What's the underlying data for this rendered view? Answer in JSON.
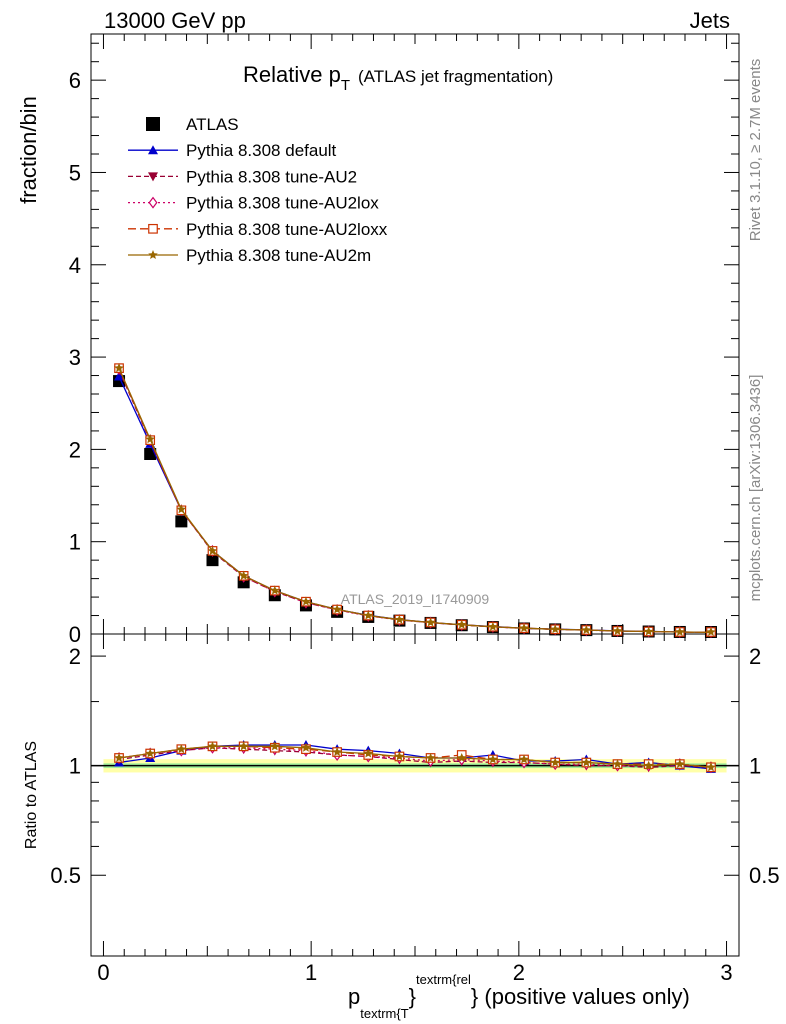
{
  "header": {
    "left": "13000 GeV pp",
    "right": "Jets"
  },
  "title": {
    "main": "Relative p",
    "sub": "T",
    "paren": "(ATLAS jet fragmentation)"
  },
  "side_labels": {
    "rivet": "Rivet 3.1.10, ≥ 2.7M events",
    "mcplots": "mcplots.cern.ch [arXiv:1306.3436]"
  },
  "watermark": "ATLAS_2019_I1740909",
  "axes": {
    "top_ylabel": "fraction/bin",
    "bottom_ylabel": "Ratio to ATLAS",
    "xlabel_p": "p",
    "xlabel_sub": "textrm{T",
    "xlabel_brace": "}",
    "xlabel_sup": "textrm{rel",
    "xlabel_rest": "} (positive values only)",
    "top_yticks": [
      "0",
      "1",
      "2",
      "3",
      "4",
      "5",
      "6"
    ],
    "bottom_yticks_left": [
      "0.5",
      "1",
      "2"
    ],
    "bottom_yticks_right": [
      "0.5",
      "1",
      "2"
    ],
    "xticks": [
      "0",
      "1",
      "2",
      "3"
    ]
  },
  "legend": [
    {
      "label": "ATLAS",
      "color": "#000000",
      "marker": "square-filled"
    },
    {
      "label": "Pythia 8.308 default",
      "color": "#0000cc",
      "marker": "triangle-up"
    },
    {
      "label": "Pythia 8.308 tune-AU2",
      "color": "#990033",
      "marker": "triangle-down"
    },
    {
      "label": "Pythia 8.308 tune-AU2lox",
      "color": "#cc0066",
      "marker": "diamond-open"
    },
    {
      "label": "Pythia 8.308 tune-AU2loxx",
      "color": "#cc3300",
      "marker": "square-open"
    },
    {
      "label": "Pythia 8.308 tune-AU2m",
      "color": "#996600",
      "marker": "star"
    }
  ],
  "chart_data": {
    "type": "scatter",
    "x": [
      0.075,
      0.225,
      0.375,
      0.525,
      0.675,
      0.825,
      0.975,
      1.125,
      1.275,
      1.425,
      1.575,
      1.725,
      1.875,
      2.025,
      2.175,
      2.325,
      2.475,
      2.625,
      2.775,
      2.925
    ],
    "xlim": [
      -0.06,
      3.06
    ],
    "ylim_top": [
      0,
      6.5
    ],
    "ylim_ratio": [
      0.3,
      2.3
    ],
    "ratio_band_half_width": 0.03,
    "series": [
      {
        "name": "ATLAS",
        "values": [
          2.74,
          1.95,
          1.22,
          0.8,
          0.56,
          0.42,
          0.31,
          0.24,
          0.185,
          0.145,
          0.12,
          0.095,
          0.075,
          0.06,
          0.05,
          0.042,
          0.033,
          0.027,
          0.022,
          0.017
        ],
        "ratio": [
          1.0,
          1.0,
          1.0,
          1.0,
          1.0,
          1.0,
          1.0,
          1.0,
          1.0,
          1.0,
          1.0,
          1.0,
          1.0,
          1.0,
          1.0,
          1.0,
          1.0,
          1.0,
          1.0,
          1.0
        ]
      },
      {
        "name": "Pythia 8.308 default",
        "values": [
          2.79,
          2.06,
          1.34,
          0.9,
          0.63,
          0.47,
          0.35,
          0.265,
          0.203,
          0.157,
          0.125,
          0.1,
          0.081,
          0.062,
          0.052,
          0.044,
          0.034,
          0.028,
          0.022,
          0.017
        ],
        "ratio": [
          1.02,
          1.05,
          1.1,
          1.13,
          1.14,
          1.14,
          1.14,
          1.11,
          1.1,
          1.08,
          1.05,
          1.05,
          1.07,
          1.03,
          1.03,
          1.04,
          1.01,
          1.02,
          1.0,
          0.98
        ]
      },
      {
        "name": "Pythia 8.308 tune-AU2",
        "values": [
          2.86,
          2.09,
          1.34,
          0.89,
          0.62,
          0.46,
          0.34,
          0.262,
          0.198,
          0.153,
          0.122,
          0.098,
          0.077,
          0.062,
          0.051,
          0.042,
          0.033,
          0.027,
          0.022,
          0.017
        ],
        "ratio": [
          1.04,
          1.07,
          1.1,
          1.12,
          1.11,
          1.1,
          1.09,
          1.07,
          1.06,
          1.04,
          1.02,
          1.03,
          1.02,
          1.02,
          1.01,
          1.0,
          1.0,
          0.99,
          1.0,
          0.99
        ]
      },
      {
        "name": "Pythia 8.308 tune-AU2lox",
        "values": [
          2.87,
          2.1,
          1.34,
          0.9,
          0.62,
          0.46,
          0.34,
          0.26,
          0.196,
          0.152,
          0.123,
          0.098,
          0.077,
          0.062,
          0.051,
          0.042,
          0.033,
          0.027,
          0.022,
          0.017
        ],
        "ratio": [
          1.05,
          1.08,
          1.1,
          1.12,
          1.12,
          1.11,
          1.1,
          1.07,
          1.06,
          1.05,
          1.03,
          1.04,
          1.03,
          1.02,
          1.01,
          1.01,
          1.0,
          1.0,
          1.01,
          0.99
        ]
      },
      {
        "name": "Pythia 8.308 tune-AU2loxx",
        "values": [
          2.88,
          2.1,
          1.34,
          0.9,
          0.63,
          0.47,
          0.35,
          0.265,
          0.2,
          0.155,
          0.125,
          0.1,
          0.079,
          0.063,
          0.051,
          0.043,
          0.033,
          0.027,
          0.022,
          0.017
        ],
        "ratio": [
          1.05,
          1.08,
          1.11,
          1.13,
          1.13,
          1.12,
          1.11,
          1.09,
          1.07,
          1.06,
          1.05,
          1.07,
          1.04,
          1.04,
          1.02,
          1.02,
          1.01,
          1.01,
          1.01,
          0.99
        ]
      },
      {
        "name": "Pythia 8.308 tune-AU2m",
        "values": [
          2.88,
          2.11,
          1.35,
          0.9,
          0.63,
          0.47,
          0.35,
          0.266,
          0.2,
          0.155,
          0.125,
          0.1,
          0.078,
          0.063,
          0.051,
          0.043,
          0.033,
          0.027,
          0.022,
          0.017
        ],
        "ratio": [
          1.05,
          1.08,
          1.11,
          1.13,
          1.13,
          1.13,
          1.12,
          1.09,
          1.08,
          1.06,
          1.05,
          1.05,
          1.04,
          1.04,
          1.02,
          1.02,
          1.01,
          1.0,
          1.01,
          0.99
        ]
      }
    ]
  }
}
